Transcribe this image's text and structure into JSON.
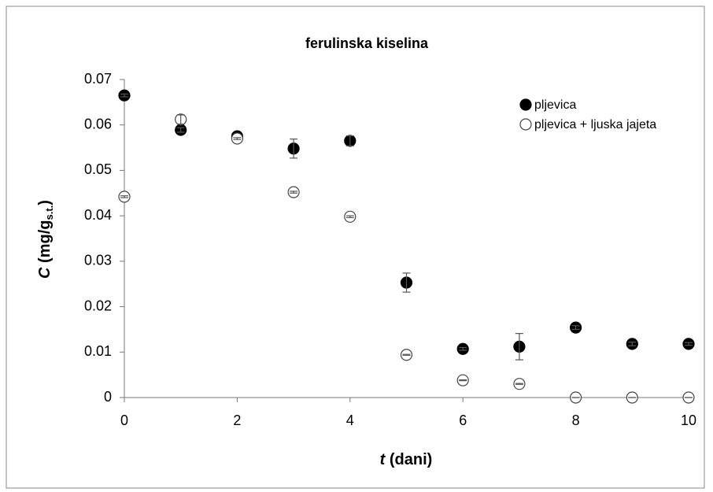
{
  "chart_data": {
    "type": "scatter",
    "title": "ferulinska kiselina",
    "x_label_parts": [
      "t",
      " (dani)"
    ],
    "y_label_parts": [
      "C",
      " (mg/g",
      "s.t.",
      ")"
    ],
    "x": [
      0,
      1,
      2,
      3,
      4,
      5,
      6,
      7,
      8,
      9,
      10
    ],
    "series": [
      {
        "name": "pljevica",
        "color": "#000000",
        "filled": true,
        "values": [
          0.0665,
          0.0589,
          0.0575,
          0.0548,
          0.0565,
          0.0253,
          0.0107,
          0.0112,
          0.0154,
          0.0118,
          0.0118
        ],
        "errors": [
          0.0003,
          0.0005,
          0.0003,
          0.0021,
          0.0011,
          0.0021,
          0.0003,
          0.0029,
          0.0004,
          0.0004,
          0.0003
        ]
      },
      {
        "name": "pljevica + ljuska jajeta",
        "color": "#000000",
        "filled": false,
        "values": [
          0.0442,
          0.0612,
          0.057,
          0.0452,
          0.0398,
          0.0094,
          0.0038,
          0.003,
          0,
          0,
          0
        ],
        "errors": [
          0.0002,
          0.001,
          0.0002,
          0.0002,
          0.0002,
          0.0001,
          0.0001,
          0.0001,
          0,
          0,
          0
        ]
      }
    ],
    "xlim": [
      0,
      10
    ],
    "xticks": [
      0,
      2,
      4,
      6,
      8,
      10
    ],
    "ylim": [
      0,
      0.07
    ],
    "yticks": [
      0,
      0.01,
      0.02,
      0.03,
      0.04,
      0.05,
      0.06,
      0.07
    ],
    "grid": false,
    "legend": "upper right"
  }
}
